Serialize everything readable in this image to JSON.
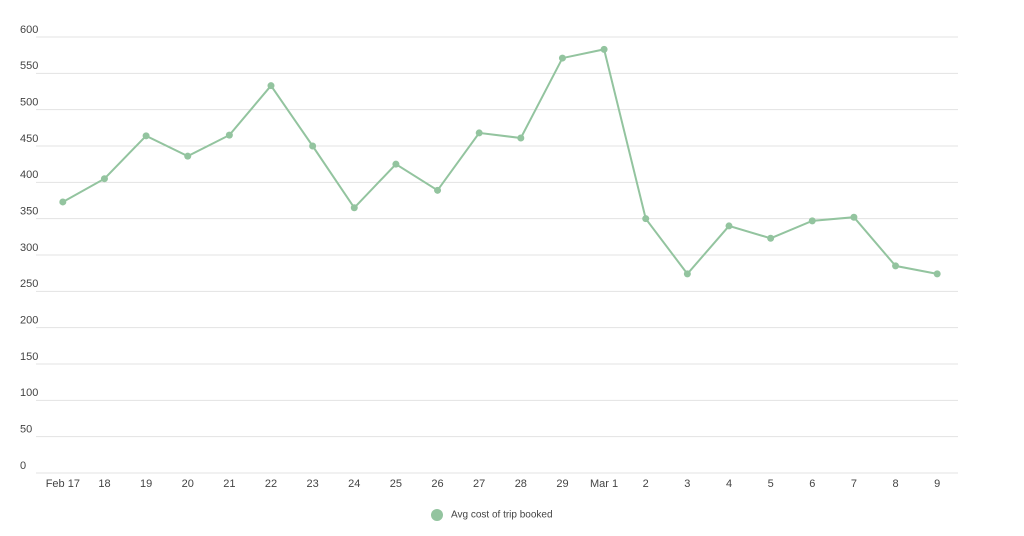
{
  "chart_data": {
    "type": "line",
    "categories": [
      "Feb 17",
      "18",
      "19",
      "20",
      "21",
      "22",
      "23",
      "24",
      "25",
      "26",
      "27",
      "28",
      "29",
      "Mar 1",
      "2",
      "3",
      "4",
      "5",
      "6",
      "7",
      "8",
      "9"
    ],
    "series": [
      {
        "name": "Avg cost of trip booked",
        "color": "#93c49f",
        "values": [
          373,
          405,
          464,
          436,
          465,
          533,
          450,
          365,
          425,
          389,
          468,
          461,
          571,
          583,
          350,
          274,
          340,
          323,
          347,
          352,
          285,
          274
        ]
      }
    ],
    "ylim": [
      0,
      600
    ],
    "yticks": [
      0,
      50,
      100,
      150,
      200,
      250,
      300,
      350,
      400,
      450,
      500,
      550,
      600
    ],
    "grid": true,
    "legend": "bottom"
  }
}
